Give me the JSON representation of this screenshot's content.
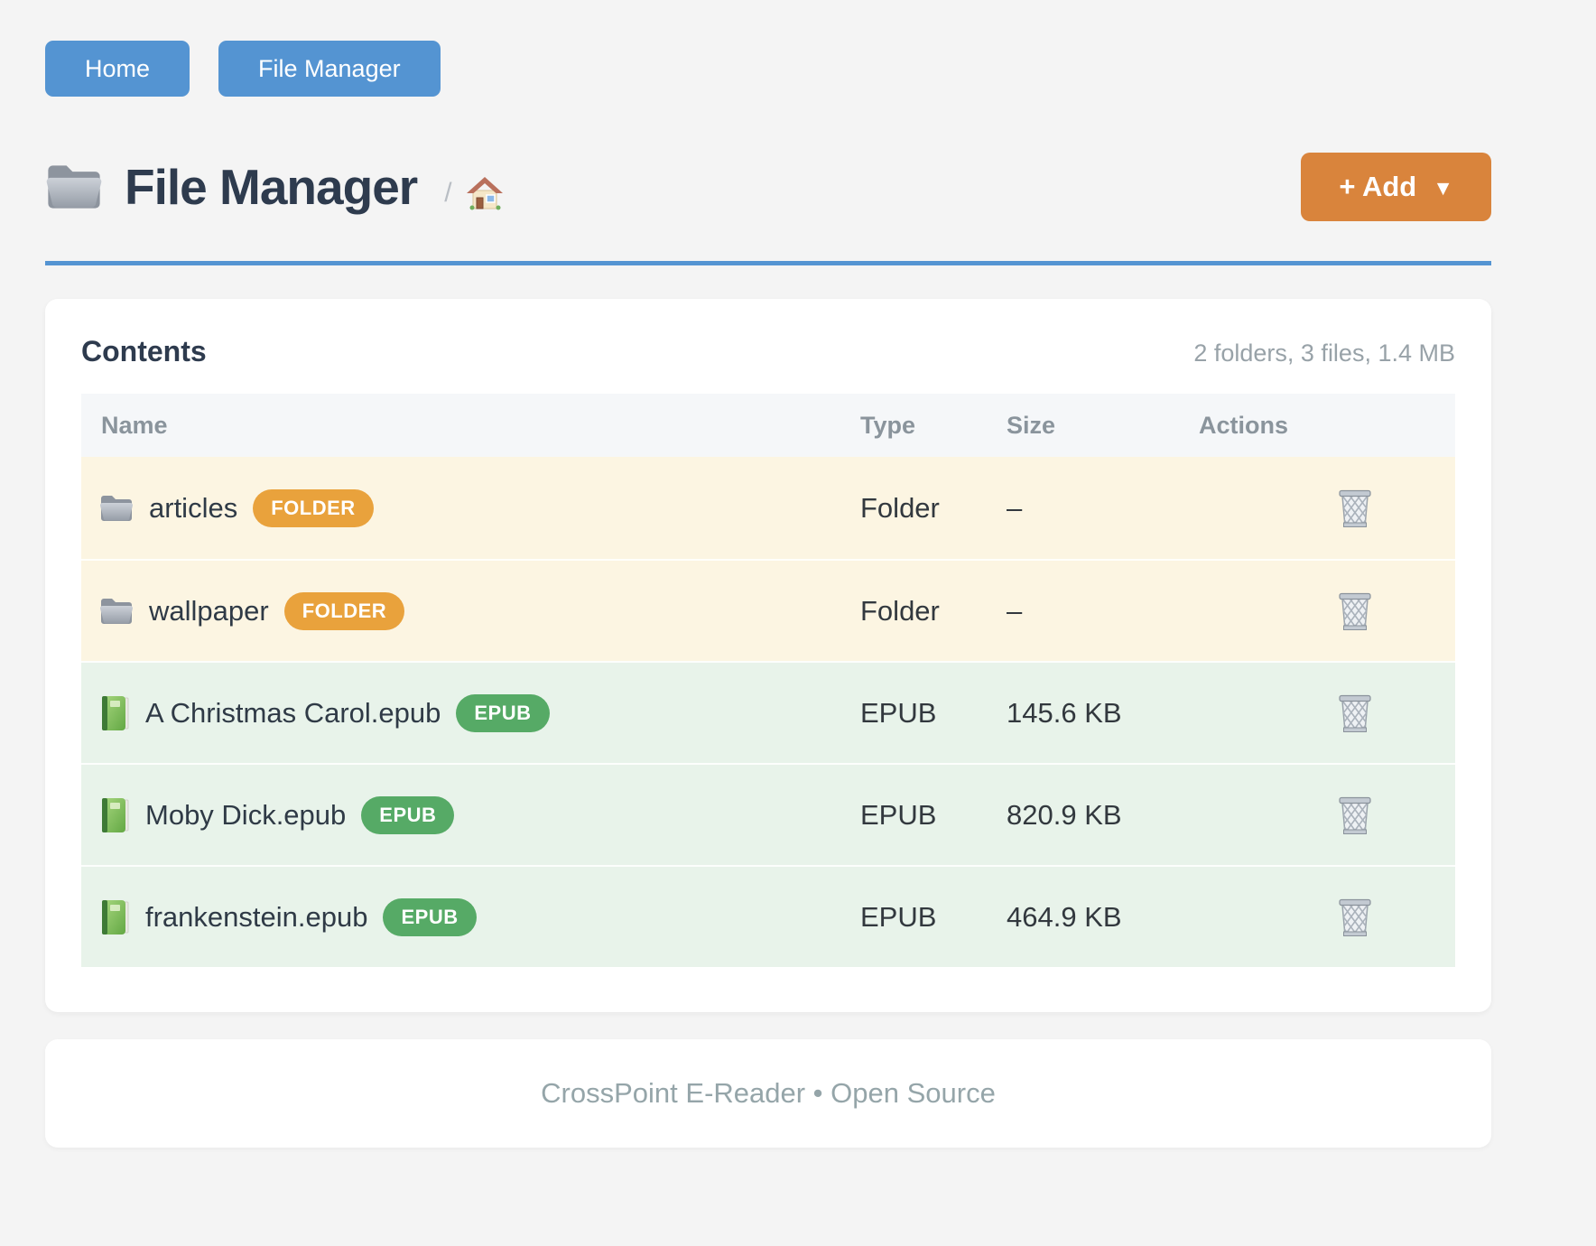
{
  "nav": {
    "items": [
      {
        "label": "Home"
      },
      {
        "label": "File Manager"
      }
    ]
  },
  "header": {
    "title": "File Manager",
    "breadcrumb_separator": "/",
    "breadcrumb_home_icon": "house-icon",
    "add_button": {
      "label": "+ Add",
      "caret": "▼"
    }
  },
  "contents": {
    "title": "Contents",
    "summary": "2 folders, 3 files, 1.4 MB",
    "columns": [
      "Name",
      "Type",
      "Size",
      "Actions"
    ],
    "rows": [
      {
        "name": "articles",
        "badge": "FOLDER",
        "kind": "folder",
        "type": "Folder",
        "size": "–"
      },
      {
        "name": "wallpaper",
        "badge": "FOLDER",
        "kind": "folder",
        "type": "Folder",
        "size": "–"
      },
      {
        "name": "A Christmas Carol.epub",
        "badge": "EPUB",
        "kind": "epub",
        "type": "EPUB",
        "size": "145.6 KB"
      },
      {
        "name": "Moby Dick.epub",
        "badge": "EPUB",
        "kind": "epub",
        "type": "EPUB",
        "size": "820.9 KB"
      },
      {
        "name": "frankenstein.epub",
        "badge": "EPUB",
        "kind": "epub",
        "type": "EPUB",
        "size": "464.9 KB"
      }
    ]
  },
  "footer": {
    "text": "CrossPoint E-Reader • Open Source"
  },
  "colors": {
    "page_background": "#f4f4f4",
    "accent_blue": "#5494d2",
    "accent_orange": "#d9843c",
    "badge_folder": "#e9a23c",
    "badge_epub": "#56aa66",
    "row_folder_bg": "#fcf5e2",
    "row_epub_bg": "#e8f3ea",
    "heading_text": "#2e3b4e",
    "muted_text": "#98a2a8"
  }
}
